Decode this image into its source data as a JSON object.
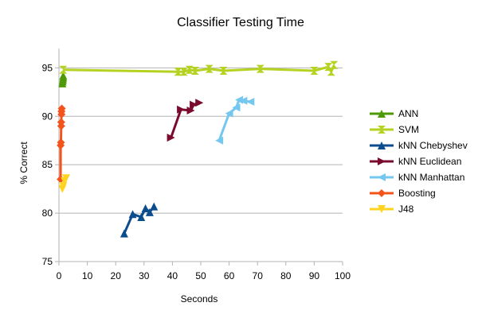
{
  "chart_data": {
    "type": "scatter",
    "title": "Classifier Testing Time",
    "xlabel": "Seconds",
    "ylabel": "% Correct",
    "xlim": [
      0,
      100
    ],
    "ylim": [
      75,
      97
    ],
    "xticks": [
      0,
      10,
      20,
      30,
      40,
      50,
      60,
      70,
      80,
      90,
      100
    ],
    "yticks": [
      75,
      80,
      85,
      90,
      95
    ],
    "grid": "horizontal",
    "legend_position": "right",
    "series": [
      {
        "name": "ANN",
        "color": "#4e9a06",
        "marker": "triangle-up",
        "points": [
          [
            1.2,
            93.4
          ],
          [
            1.3,
            93.6
          ],
          [
            1.4,
            93.8
          ],
          [
            1.5,
            94.0
          ],
          [
            1.5,
            94.2
          ]
        ]
      },
      {
        "name": "SVM",
        "color": "#b5d220",
        "marker": "hourglass",
        "points": [
          [
            1.5,
            94.8
          ],
          [
            42,
            94.6
          ],
          [
            44,
            94.6
          ],
          [
            46,
            94.8
          ],
          [
            48,
            94.7
          ],
          [
            53,
            94.9
          ],
          [
            58,
            94.7
          ],
          [
            71,
            94.9
          ],
          [
            90,
            94.7
          ],
          [
            95,
            95.1
          ],
          [
            96,
            94.6
          ],
          [
            97,
            95.3
          ]
        ]
      },
      {
        "name": "kNN Chebyshev",
        "color": "#0b4c8c",
        "marker": "triangle-up",
        "points": [
          [
            23,
            77.9
          ],
          [
            26,
            79.9
          ],
          [
            29,
            79.6
          ],
          [
            30.5,
            80.5
          ],
          [
            32,
            80.1
          ],
          [
            33.5,
            80.7
          ]
        ]
      },
      {
        "name": "kNN Euclidean",
        "color": "#7a0a2e",
        "marker": "triangle-right",
        "points": [
          [
            39.5,
            87.8
          ],
          [
            43,
            90.7
          ],
          [
            46.5,
            90.6
          ],
          [
            47.5,
            91.2
          ],
          [
            49.5,
            91.4
          ]
        ]
      },
      {
        "name": "kNN Manhattan",
        "color": "#74c7ef",
        "marker": "triangle-left",
        "points": [
          [
            56.5,
            87.5
          ],
          [
            60,
            90.3
          ],
          [
            62.5,
            90.9
          ],
          [
            63.5,
            91.7
          ],
          [
            65,
            91.6
          ],
          [
            67.5,
            91.5
          ]
        ]
      },
      {
        "name": "Boosting",
        "color": "#f2541b",
        "marker": "diamond",
        "points": [
          [
            0.6,
            83.5
          ],
          [
            0.6,
            87.0
          ],
          [
            0.7,
            87.3
          ],
          [
            0.8,
            89.0
          ],
          [
            0.8,
            89.4
          ],
          [
            0.9,
            90.2
          ],
          [
            0.9,
            90.5
          ],
          [
            1.0,
            90.8
          ]
        ]
      },
      {
        "name": "J48",
        "color": "#ffd320",
        "marker": "triangle-down",
        "points": [
          [
            1.2,
            82.5
          ],
          [
            1.5,
            82.8
          ],
          [
            2.0,
            83.3
          ],
          [
            2.5,
            83.6
          ]
        ]
      }
    ]
  }
}
